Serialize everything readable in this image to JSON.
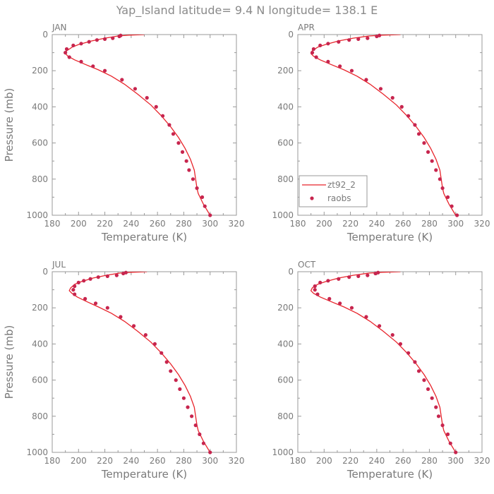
{
  "figure": {
    "title": "Yap_Island   latitude= 9.4 N longitude= 138.1 E"
  },
  "colors": {
    "model_line": "#e8242b",
    "obs_dot": "#c7254e",
    "axis": "#999999",
    "text": "#7a7a7a"
  },
  "chart_data": [
    {
      "type": "line",
      "panel": "JAN",
      "xlabel": "Temperature (K)",
      "ylabel": "Pressure (mb)",
      "xlim": [
        180,
        320
      ],
      "ylim": [
        0,
        1000
      ],
      "y_inverted": true,
      "xticks": [
        180,
        200,
        220,
        240,
        260,
        280,
        300,
        320
      ],
      "yticks": [
        0,
        200,
        400,
        600,
        800,
        1000
      ],
      "series": [
        {
          "name": "zt92_2",
          "style": "line",
          "x": [
            250,
            238,
            230,
            220,
            210,
            200,
            195,
            191,
            190,
            192,
            197,
            205,
            215,
            225,
            235,
            245,
            255,
            263,
            270,
            276,
            281,
            285,
            288,
            289,
            290,
            291,
            295,
            300
          ],
          "y": [
            0,
            3,
            8,
            20,
            35,
            55,
            70,
            90,
            105,
            120,
            140,
            165,
            195,
            230,
            275,
            330,
            390,
            450,
            510,
            570,
            630,
            690,
            750,
            800,
            850,
            880,
            940,
            1000
          ]
        },
        {
          "name": "raobs",
          "style": "dots",
          "x": [
            232,
            231,
            226,
            220,
            214,
            208,
            202,
            196,
            191,
            190,
            193,
            202,
            211,
            220,
            233,
            243,
            252,
            259,
            264,
            269,
            272,
            276,
            279,
            282,
            284,
            287,
            290,
            294,
            296,
            300
          ],
          "y": [
            5,
            10,
            20,
            25,
            30,
            40,
            50,
            60,
            80,
            100,
            125,
            150,
            175,
            200,
            250,
            300,
            350,
            400,
            450,
            500,
            550,
            600,
            650,
            700,
            750,
            800,
            850,
            900,
            950,
            1000
          ]
        }
      ]
    },
    {
      "type": "line",
      "panel": "APR",
      "xlabel": "Temperature (K)",
      "xlim": [
        180,
        320
      ],
      "ylim": [
        0,
        1000
      ],
      "y_inverted": true,
      "xticks": [
        180,
        200,
        220,
        240,
        260,
        280,
        300,
        320
      ],
      "yticks": [
        0,
        200,
        400,
        600,
        800,
        1000
      ],
      "legend": {
        "placement": "bottom-left",
        "entries": [
          "zt92_2",
          "raobs"
        ]
      },
      "series": [
        {
          "name": "zt92_2",
          "style": "line",
          "x": [
            258,
            244,
            234,
            222,
            211,
            201,
            195,
            191,
            190,
            192,
            197,
            205,
            215,
            225,
            235,
            245,
            255,
            263,
            270,
            276,
            281,
            285,
            288,
            289,
            290,
            291,
            295,
            300
          ],
          "y": [
            0,
            3,
            8,
            20,
            35,
            55,
            70,
            90,
            105,
            120,
            140,
            165,
            195,
            230,
            275,
            330,
            390,
            450,
            510,
            570,
            630,
            690,
            750,
            800,
            850,
            880,
            940,
            1000
          ]
        },
        {
          "name": "raobs",
          "style": "dots",
          "x": [
            242,
            240,
            233,
            226,
            219,
            211,
            203,
            197,
            192,
            191,
            194,
            203,
            212,
            221,
            232,
            243,
            252,
            259,
            264,
            269,
            272,
            276,
            279,
            282,
            285,
            288,
            290,
            294,
            297,
            301
          ],
          "y": [
            5,
            10,
            20,
            25,
            30,
            40,
            50,
            60,
            80,
            100,
            125,
            150,
            175,
            200,
            250,
            300,
            350,
            400,
            450,
            500,
            550,
            600,
            650,
            700,
            750,
            800,
            850,
            900,
            950,
            1000
          ]
        }
      ]
    },
    {
      "type": "line",
      "panel": "JUL",
      "xlabel": "Temperature (K)",
      "ylabel": "Pressure (mb)",
      "xlim": [
        180,
        320
      ],
      "ylim": [
        0,
        1000
      ],
      "y_inverted": true,
      "xticks": [
        180,
        200,
        220,
        240,
        260,
        280,
        300,
        320
      ],
      "yticks": [
        0,
        200,
        400,
        600,
        800,
        1000
      ],
      "series": [
        {
          "name": "zt92_2",
          "style": "line",
          "x": [
            252,
            240,
            231,
            221,
            211,
            202,
            197,
            194,
            193,
            195,
            199,
            206,
            215,
            225,
            235,
            245,
            255,
            263,
            270,
            276,
            281,
            285,
            288,
            289,
            290,
            291,
            295,
            300
          ],
          "y": [
            0,
            3,
            8,
            20,
            35,
            55,
            70,
            90,
            105,
            120,
            140,
            165,
            195,
            230,
            275,
            330,
            390,
            450,
            510,
            570,
            630,
            690,
            750,
            800,
            850,
            880,
            940,
            1000
          ]
        },
        {
          "name": "raobs",
          "style": "dots",
          "x": [
            236,
            234,
            229,
            222,
            215,
            209,
            204,
            200,
            197,
            196,
            197,
            205,
            213,
            222,
            232,
            242,
            251,
            258,
            263,
            267,
            270,
            274,
            277,
            280,
            283,
            286,
            289,
            292,
            295,
            300
          ],
          "y": [
            5,
            10,
            20,
            25,
            30,
            40,
            50,
            60,
            80,
            100,
            125,
            150,
            175,
            200,
            250,
            300,
            350,
            400,
            450,
            500,
            550,
            600,
            650,
            700,
            750,
            800,
            850,
            900,
            950,
            1000
          ]
        }
      ]
    },
    {
      "type": "line",
      "panel": "OCT",
      "xlabel": "Temperature (K)",
      "xlim": [
        180,
        320
      ],
      "ylim": [
        0,
        1000
      ],
      "y_inverted": true,
      "xticks": [
        180,
        200,
        220,
        240,
        260,
        280,
        300,
        320
      ],
      "yticks": [
        0,
        200,
        400,
        600,
        800,
        1000
      ],
      "series": [
        {
          "name": "zt92_2",
          "style": "line",
          "x": [
            258,
            244,
            234,
            222,
            211,
            201,
            195,
            191,
            190,
            192,
            197,
            205,
            215,
            225,
            235,
            245,
            255,
            263,
            270,
            276,
            281,
            285,
            288,
            289,
            290,
            291,
            295,
            300
          ],
          "y": [
            0,
            3,
            8,
            20,
            35,
            55,
            70,
            90,
            105,
            120,
            140,
            165,
            195,
            230,
            275,
            330,
            390,
            450,
            510,
            570,
            630,
            690,
            750,
            800,
            850,
            880,
            940,
            1000
          ]
        },
        {
          "name": "raobs",
          "style": "dots",
          "x": [
            241,
            239,
            233,
            226,
            219,
            211,
            203,
            197,
            193,
            193,
            195,
            204,
            212,
            221,
            232,
            242,
            252,
            258,
            264,
            269,
            272,
            276,
            279,
            282,
            285,
            287,
            290,
            294,
            296,
            300
          ],
          "y": [
            5,
            10,
            20,
            25,
            30,
            40,
            50,
            60,
            80,
            100,
            125,
            150,
            175,
            200,
            250,
            300,
            350,
            400,
            450,
            500,
            550,
            600,
            650,
            700,
            750,
            800,
            850,
            900,
            950,
            1000
          ]
        }
      ]
    }
  ]
}
